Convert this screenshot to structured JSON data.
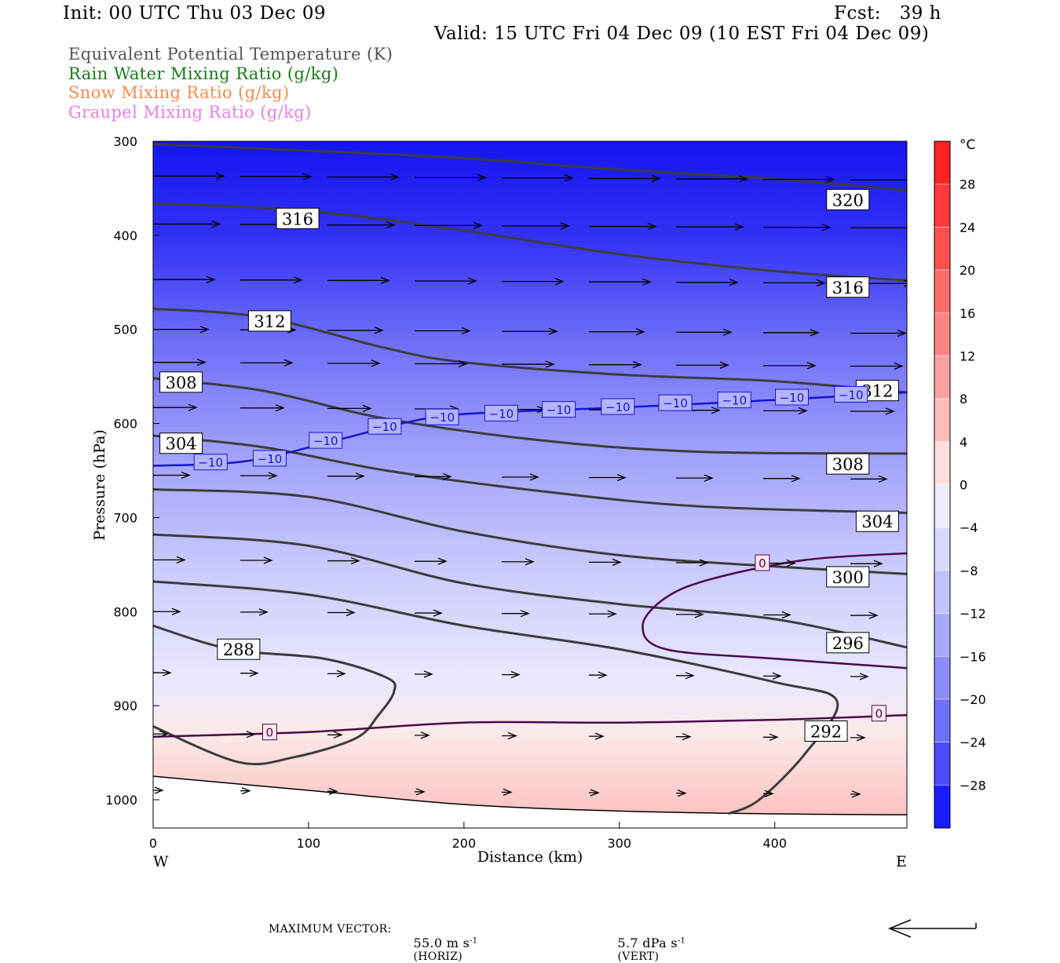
{
  "header": {
    "init": "Init: 00 UTC Thu 03 Dec 09",
    "fcst": "Fcst:   39 h",
    "valid": "Valid: 15 UTC Fri 04 Dec 09 (10 EST Fri 04 Dec 09)"
  },
  "legend": [
    {
      "label": "Equivalent Potential Temperature (K)",
      "color": "#555555"
    },
    {
      "label": "Rain Water Mixing Ratio (g/kg)",
      "color": "#1a7a1a"
    },
    {
      "label": "Snow Mixing Ratio (g/kg)",
      "color": "#f08c50"
    },
    {
      "label": "Graupel Mixing Ratio (g/kg)",
      "color": "#e67ee6"
    }
  ],
  "footer": {
    "max_vector_label": "MAXIMUM VECTOR:",
    "horiz_value": "55.0 m s",
    "horiz_exp": "-1",
    "horiz_suffix": "(HORIZ)",
    "vert_value": "5.7 dPa s",
    "vert_exp": "-1",
    "vert_suffix": "(VERT)"
  },
  "chart_data": {
    "type": "contour",
    "xlabel": "Distance (km)",
    "ylabel": "Pressure (hPa)",
    "xlim": [
      0,
      485
    ],
    "ylim": [
      1030,
      300
    ],
    "xticks": [
      0,
      100,
      200,
      300,
      400
    ],
    "yticks": [
      300,
      400,
      500,
      600,
      700,
      800,
      900,
      1000
    ],
    "x_direction_labels": {
      "left": "W",
      "right": "E"
    },
    "colorbar": {
      "unit": "°C",
      "ticks": [
        28,
        24,
        20,
        16,
        12,
        8,
        4,
        0,
        -4,
        -8,
        -12,
        -16,
        -20,
        -24,
        -28
      ],
      "min": -32,
      "max": 32,
      "levels": [
        {
          "from": 28,
          "to": 32,
          "color": "#ff2222"
        },
        {
          "from": 24,
          "to": 28,
          "color": "#ff3a3a"
        },
        {
          "from": 20,
          "to": 24,
          "color": "#ff5050"
        },
        {
          "from": 16,
          "to": 20,
          "color": "#ff6a6a"
        },
        {
          "from": 12,
          "to": 16,
          "color": "#ff8585"
        },
        {
          "from": 8,
          "to": 12,
          "color": "#ffa0a0"
        },
        {
          "from": 4,
          "to": 8,
          "color": "#ffbcbc"
        },
        {
          "from": 0,
          "to": 4,
          "color": "#ffdede"
        },
        {
          "from": -4,
          "to": 0,
          "color": "#ececff"
        },
        {
          "from": -8,
          "to": -4,
          "color": "#d8d8ff"
        },
        {
          "from": -12,
          "to": -8,
          "color": "#c2c2ff"
        },
        {
          "from": -16,
          "to": -12,
          "color": "#a8a8ff"
        },
        {
          "from": -20,
          "to": -16,
          "color": "#8c8cff"
        },
        {
          "from": -24,
          "to": -20,
          "color": "#6e6eff"
        },
        {
          "from": -28,
          "to": -24,
          "color": "#4a4aff"
        },
        {
          "from": -32,
          "to": -28,
          "color": "#1a1aff"
        }
      ]
    },
    "theta_e_contours": [
      {
        "level": 320,
        "points": [
          [
            0,
            303
          ],
          [
            100,
            310
          ],
          [
            200,
            318
          ],
          [
            300,
            330
          ],
          [
            400,
            340
          ],
          [
            485,
            352
          ]
        ]
      },
      {
        "level": 316,
        "points": [
          [
            0,
            366
          ],
          [
            100,
            374
          ],
          [
            200,
            395
          ],
          [
            300,
            420
          ],
          [
            400,
            438
          ],
          [
            485,
            448
          ]
        ]
      },
      {
        "level": 312,
        "points": [
          [
            0,
            478
          ],
          [
            70,
            487
          ],
          [
            150,
            520
          ],
          [
            200,
            535
          ],
          [
            300,
            548
          ],
          [
            400,
            555
          ],
          [
            485,
            567
          ]
        ]
      },
      {
        "level": 308,
        "points": [
          [
            0,
            552
          ],
          [
            70,
            565
          ],
          [
            150,
            595
          ],
          [
            250,
            618
          ],
          [
            350,
            630
          ],
          [
            485,
            632
          ]
        ]
      },
      {
        "level": 304,
        "points": [
          [
            0,
            613
          ],
          [
            70,
            625
          ],
          [
            150,
            650
          ],
          [
            250,
            672
          ],
          [
            350,
            688
          ],
          [
            485,
            695
          ]
        ]
      },
      {
        "level": 300,
        "points": [
          [
            0,
            670
          ],
          [
            100,
            678
          ],
          [
            200,
            715
          ],
          [
            300,
            740
          ],
          [
            400,
            752
          ],
          [
            485,
            760
          ]
        ]
      },
      {
        "level": 296,
        "points": [
          [
            0,
            718
          ],
          [
            100,
            730
          ],
          [
            200,
            770
          ],
          [
            300,
            792
          ],
          [
            400,
            808
          ],
          [
            485,
            838
          ]
        ]
      },
      {
        "level": 292,
        "points": [
          [
            0,
            768
          ],
          [
            100,
            782
          ],
          [
            200,
            815
          ],
          [
            300,
            840
          ],
          [
            400,
            875
          ],
          [
            440,
            895
          ],
          [
            420,
            950
          ],
          [
            390,
            1000
          ],
          [
            370,
            1015
          ]
        ]
      },
      {
        "level": 288,
        "points": [
          [
            0,
            815
          ],
          [
            50,
            840
          ],
          [
            110,
            850
          ],
          [
            150,
            870
          ],
          [
            155,
            885
          ],
          [
            145,
            910
          ],
          [
            130,
            935
          ],
          [
            90,
            955
          ],
          [
            55,
            960
          ],
          [
            0,
            922
          ]
        ]
      }
    ],
    "theta_e_labels": [
      {
        "level": 320,
        "x": 447,
        "p": 362
      },
      {
        "level": 316,
        "x": 93,
        "p": 382
      },
      {
        "level": 316,
        "x": 447,
        "p": 455
      },
      {
        "level": 312,
        "x": 75,
        "p": 491
      },
      {
        "level": 312,
        "x": 466,
        "p": 565
      },
      {
        "level": 308,
        "x": 18,
        "p": 556
      },
      {
        "level": 308,
        "x": 447,
        "p": 643
      },
      {
        "level": 304,
        "x": 18,
        "p": 621
      },
      {
        "level": 304,
        "x": 466,
        "p": 704
      },
      {
        "level": 300,
        "x": 447,
        "p": 763
      },
      {
        "level": 296,
        "x": 447,
        "p": 833
      },
      {
        "level": 292,
        "x": 433,
        "p": 927
      },
      {
        "level": 288,
        "x": 55,
        "p": 840
      }
    ],
    "isotherms": [
      {
        "level": -10,
        "color": "#1515d0",
        "points": [
          [
            0,
            645
          ],
          [
            60,
            640
          ],
          [
            120,
            617
          ],
          [
            160,
            600
          ],
          [
            200,
            590
          ],
          [
            300,
            583
          ],
          [
            400,
            575
          ],
          [
            485,
            567
          ]
        ]
      },
      {
        "level": 0,
        "color": "#4a0a4a",
        "points": [
          [
            0,
            933
          ],
          [
            100,
            928
          ],
          [
            200,
            918
          ],
          [
            300,
            918
          ],
          [
            400,
            915
          ],
          [
            485,
            910
          ]
        ]
      },
      {
        "level": 0,
        "color": "#4a0a4a",
        "points": [
          [
            485,
            738
          ],
          [
            420,
            745
          ],
          [
            360,
            765
          ],
          [
            330,
            785
          ],
          [
            315,
            815
          ],
          [
            330,
            840
          ],
          [
            400,
            850
          ],
          [
            485,
            860
          ]
        ]
      }
    ],
    "isotherm_labels": [
      {
        "level": -10,
        "x": 37,
        "p": 641
      },
      {
        "level": -10,
        "x": 75,
        "p": 637
      },
      {
        "level": -10,
        "x": 111,
        "p": 618
      },
      {
        "level": -10,
        "x": 149,
        "p": 603
      },
      {
        "level": -10,
        "x": 186,
        "p": 593
      },
      {
        "level": -10,
        "x": 224,
        "p": 589
      },
      {
        "level": -10,
        "x": 261,
        "p": 585
      },
      {
        "level": -10,
        "x": 299,
        "p": 582
      },
      {
        "level": -10,
        "x": 336,
        "p": 578
      },
      {
        "level": -10,
        "x": 374,
        "p": 575
      },
      {
        "level": -10,
        "x": 411,
        "p": 572
      },
      {
        "level": -10,
        "x": 449,
        "p": 569
      },
      {
        "level": 0,
        "x": 75,
        "p": 928
      },
      {
        "level": 0,
        "x": 392,
        "p": 748
      },
      {
        "level": 0,
        "x": 467,
        "p": 908
      }
    ]
  }
}
